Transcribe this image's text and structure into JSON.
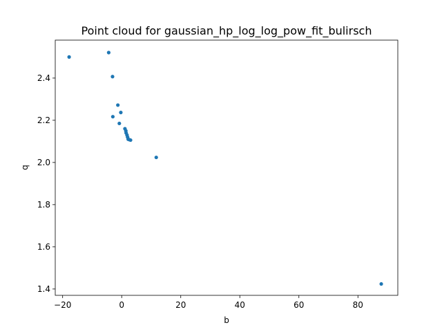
{
  "chart_data": {
    "type": "scatter",
    "title": "Point cloud for gaussian_hp_log_log_pow_fit_bulirsch",
    "xlabel": "b",
    "ylabel": "q",
    "xlim": [
      -22.5,
      93.5
    ],
    "ylim": [
      1.37,
      2.58
    ],
    "xticks": [
      -20,
      0,
      20,
      40,
      60,
      80
    ],
    "xtick_labels": [
      "−20",
      "0",
      "20",
      "40",
      "60",
      "80"
    ],
    "yticks": [
      1.4,
      1.6,
      1.8,
      2.0,
      2.2,
      2.4
    ],
    "ytick_labels": [
      "1.4",
      "1.6",
      "1.8",
      "2.0",
      "2.2",
      "2.4"
    ],
    "grid": false,
    "marker_color": "#1f77b4",
    "series": [
      {
        "points": [
          {
            "x": -17.8,
            "y": 2.5
          },
          {
            "x": -4.4,
            "y": 2.521
          },
          {
            "x": -3.1,
            "y": 2.407
          },
          {
            "x": -1.3,
            "y": 2.272
          },
          {
            "x": -0.3,
            "y": 2.237
          },
          {
            "x": -3.0,
            "y": 2.217
          },
          {
            "x": -0.8,
            "y": 2.185
          },
          {
            "x": 1.1,
            "y": 2.16
          },
          {
            "x": 1.4,
            "y": 2.15
          },
          {
            "x": 1.5,
            "y": 2.14
          },
          {
            "x": 1.8,
            "y": 2.13
          },
          {
            "x": 2.0,
            "y": 2.12
          },
          {
            "x": 2.2,
            "y": 2.11
          },
          {
            "x": 2.6,
            "y": 2.108
          },
          {
            "x": 3.0,
            "y": 2.106
          },
          {
            "x": 11.7,
            "y": 2.024
          },
          {
            "x": 87.9,
            "y": 1.424
          }
        ]
      }
    ]
  }
}
